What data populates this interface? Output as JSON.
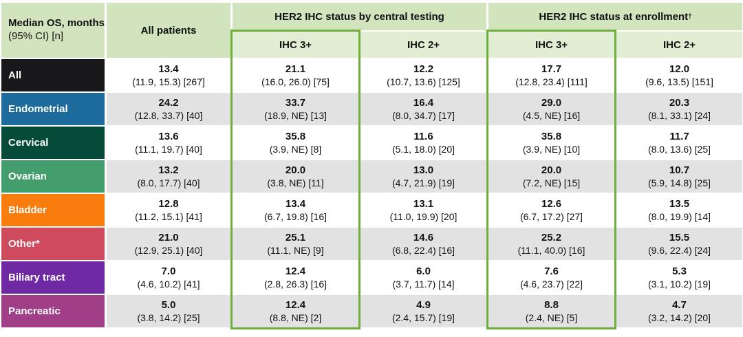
{
  "table": {
    "corner": {
      "title": "Median OS, months",
      "subtitle": "(95% CI) [n]"
    },
    "all_patients_header": "All patients",
    "groups": [
      {
        "label": "HER2 IHC status by central testing",
        "sup": ""
      },
      {
        "label": "HER2 IHC status at enrollment",
        "sup": "†"
      }
    ],
    "subheaders": [
      "IHC 3+",
      "IHC 2+",
      "IHC 3+",
      "IHC 2+"
    ],
    "rows": [
      {
        "label": "All",
        "color": "#18181a",
        "cells": [
          {
            "value": "13.4",
            "ci": "(11.9, 15.3) [267]"
          },
          {
            "value": "21.1",
            "ci": "(16.0, 26.0) [75]"
          },
          {
            "value": "12.2",
            "ci": "(10.7, 13.6) [125]"
          },
          {
            "value": "17.7",
            "ci": "(12.8, 23.4) [111]"
          },
          {
            "value": "12.0",
            "ci": "(9.6, 13.5) [151]"
          }
        ]
      },
      {
        "label": "Endometrial",
        "color": "#1d6b9d",
        "cells": [
          {
            "value": "24.2",
            "ci": "(12.8, 33.7) [40]"
          },
          {
            "value": "33.7",
            "ci": "(18.9, NE) [13]"
          },
          {
            "value": "16.4",
            "ci": "(8.0, 34.7) [17]"
          },
          {
            "value": "29.0",
            "ci": "(4.5, NE) [16]"
          },
          {
            "value": "20.3",
            "ci": "(8.1, 33.1) [24]"
          }
        ]
      },
      {
        "label": "Cervical",
        "color": "#064a3a",
        "cells": [
          {
            "value": "13.6",
            "ci": "(11.1, 19.7) [40]"
          },
          {
            "value": "35.8",
            "ci": "(3.9, NE) [8]"
          },
          {
            "value": "11.6",
            "ci": "(5.1, 18.0) [20]"
          },
          {
            "value": "35.8",
            "ci": "(3.9, NE) [10]"
          },
          {
            "value": "11.7",
            "ci": "(8.0, 13.6) [25]"
          }
        ]
      },
      {
        "label": "Ovarian",
        "color": "#449d6d",
        "cells": [
          {
            "value": "13.2",
            "ci": "(8.0, 17.7) [40]"
          },
          {
            "value": "20.0",
            "ci": "(3.8, NE) [11]"
          },
          {
            "value": "13.0",
            "ci": "(4.7, 21.9) [19]"
          },
          {
            "value": "20.0",
            "ci": "(7.2, NE) [15]"
          },
          {
            "value": "10.7",
            "ci": "(5.9, 14.8) [25]"
          }
        ]
      },
      {
        "label": "Bladder",
        "color": "#f87d0d",
        "cells": [
          {
            "value": "12.8",
            "ci": "(11.2, 15.1) [41]"
          },
          {
            "value": "13.4",
            "ci": "(6.7, 19.8) [16]"
          },
          {
            "value": "13.1",
            "ci": "(11.0, 19.9) [20]"
          },
          {
            "value": "12.6",
            "ci": "(6.7, 17.2) [27]"
          },
          {
            "value": "13.5",
            "ci": "(8.0, 19.9) [14]"
          }
        ]
      },
      {
        "label": "Other*",
        "color": "#cf4a5c",
        "cells": [
          {
            "value": "21.0",
            "ci": "(12.9, 25.1) [40]"
          },
          {
            "value": "25.1",
            "ci": "(11.1, NE) [9]"
          },
          {
            "value": "14.6",
            "ci": "(6.8, 22.4) [16]"
          },
          {
            "value": "25.2",
            "ci": "(11.1, 40.0) [16]"
          },
          {
            "value": "15.5",
            "ci": "(9.6, 22.4) [24]"
          }
        ]
      },
      {
        "label": "Biliary tract",
        "color": "#6f2aa3",
        "cells": [
          {
            "value": "7.0",
            "ci": "(4.6, 10.2) [41]"
          },
          {
            "value": "12.4",
            "ci": "(2.8, 26.3) [16]"
          },
          {
            "value": "6.0",
            "ci": "(3.7, 11.7) [14]"
          },
          {
            "value": "7.6",
            "ci": "(4.6, 23.7) [22]"
          },
          {
            "value": "5.3",
            "ci": "(3.1, 10.2) [19]"
          }
        ]
      },
      {
        "label": "Pancreatic",
        "color": "#a13e88",
        "cells": [
          {
            "value": "5.0",
            "ci": "(3.8, 14.2) [25]"
          },
          {
            "value": "12.4",
            "ci": "(8.8, NE) [2]"
          },
          {
            "value": "4.9",
            "ci": "(2.4, 15.7) [19]"
          },
          {
            "value": "8.8",
            "ci": "(2.4, NE) [5]"
          },
          {
            "value": "4.7",
            "ci": "(3.2, 14.2) [20]"
          }
        ]
      }
    ]
  },
  "colors": {
    "highlight_green": "#6fad3d",
    "header_green": "#d2e4bd",
    "subheader_green": "#e2eed3",
    "row_shade_gray": "#e2e2e2"
  }
}
